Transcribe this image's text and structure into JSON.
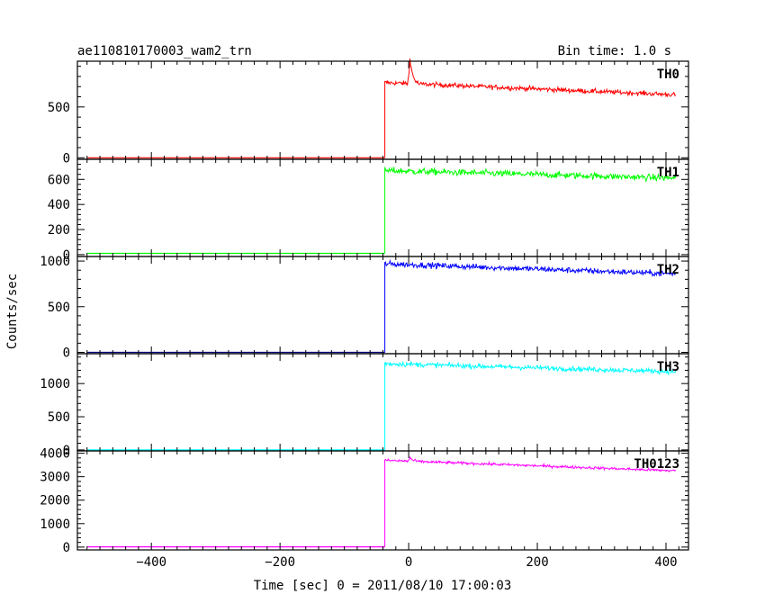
{
  "header": {
    "left_title": "ae110810170003_wam2_trn",
    "right_title": "Bin time: 1.0 s"
  },
  "axes": {
    "ylabel": "Counts/sec",
    "xlabel": "Time [sec] 0 = 2011/08/10 17:00:03"
  },
  "chart_data": {
    "type": "line",
    "xlim": [
      -515,
      435
    ],
    "x_ticks": [
      -400,
      -200,
      0,
      200,
      400
    ],
    "x_tick_labels": [
      "−400",
      "−200",
      "0",
      "200",
      "400"
    ],
    "step_time": -37,
    "data_end": 415,
    "xlabel": "Time [sec] 0 = 2011/08/10 17:00:03",
    "ylabel": "Counts/sec",
    "series": [
      {
        "name": "TH0",
        "color": "#ff0000",
        "ylim": [
          -15,
          950
        ],
        "y_ticks": [
          0,
          500
        ],
        "y_tick_labels": [
          "0",
          "500"
        ],
        "pre_level": 0,
        "post_start": 740,
        "post_end": 620,
        "noise": 22,
        "spike_time": 2,
        "spike_peak": 1000
      },
      {
        "name": "TH1",
        "color": "#00ff00",
        "ylim": [
          -15,
          760
        ],
        "y_ticks": [
          0,
          200,
          400,
          600
        ],
        "y_tick_labels": [
          "0",
          "200",
          "400",
          "600"
        ],
        "pre_level": 10,
        "post_start": 670,
        "post_end": 610,
        "noise": 25
      },
      {
        "name": "TH2",
        "color": "#0000ff",
        "ylim": [
          -15,
          1050
        ],
        "y_ticks": [
          0,
          500,
          1000
        ],
        "y_tick_labels": [
          "0",
          "500",
          "1000"
        ],
        "pre_level": 0,
        "post_start": 970,
        "post_end": 860,
        "noise": 30,
        "pre_color": "#000080"
      },
      {
        "name": "TH3",
        "color": "#00ffff",
        "ylim": [
          -15,
          1450
        ],
        "y_ticks": [
          0,
          500,
          1000
        ],
        "y_tick_labels": [
          "0",
          "500",
          "1000"
        ],
        "pre_level": 0,
        "post_start": 1300,
        "post_end": 1180,
        "noise": 35
      },
      {
        "name": "TH0123",
        "color": "#ff00ff",
        "ylim": [
          -120,
          4100
        ],
        "y_ticks": [
          0,
          1000,
          2000,
          3000,
          4000
        ],
        "y_tick_labels": [
          "0",
          "1000",
          "2000",
          "3000",
          "4000"
        ],
        "pre_level": 10,
        "post_start": 3700,
        "post_end": 3250,
        "noise": 55,
        "spike_time": 2,
        "spike_peak": 3850
      }
    ]
  }
}
